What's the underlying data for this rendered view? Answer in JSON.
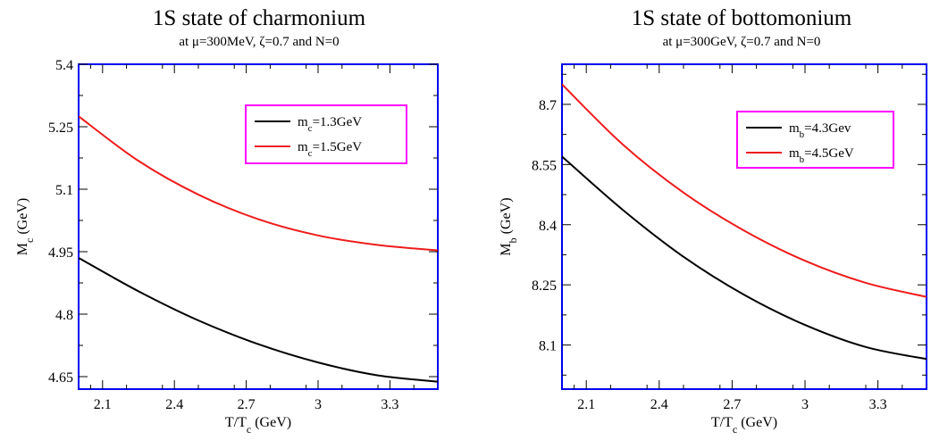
{
  "chart_data": [
    {
      "type": "line",
      "title": "1S state of charmonium",
      "subtitle": "at μ=300MeV, ζ=0.7 and N=0",
      "xlabel": {
        "base": "T/T",
        "sub": "c",
        "suffix": "  (GeV)"
      },
      "ylabel": {
        "base": "M",
        "sub": "c",
        "suffix": " (GeV)"
      },
      "xlim": [
        2.0,
        3.5
      ],
      "ylim": [
        4.62,
        5.4
      ],
      "xticks": [
        2.1,
        2.4,
        2.7,
        3.0,
        3.3
      ],
      "xtick_labels": [
        "2.1",
        "2.4",
        "2.7",
        "3",
        "3.3"
      ],
      "yticks": [
        4.65,
        4.8,
        4.95,
        5.1,
        5.25,
        5.4
      ],
      "ytick_labels": [
        "4.65",
        "4.8",
        "4.95",
        "5.1",
        "5.25",
        "5.4"
      ],
      "legend_position": "top-right",
      "x": [
        2.0,
        2.25,
        2.5,
        2.75,
        3.0,
        3.25,
        3.5
      ],
      "series": [
        {
          "name": "m_c=1.3GeV",
          "label_base": "m",
          "label_sub": "c",
          "label_rest": "=1.3GeV",
          "color": "#000000",
          "values": [
            4.935,
            4.855,
            4.785,
            4.728,
            4.684,
            4.653,
            4.638
          ]
        },
        {
          "name": "m_c=1.5GeV",
          "label_base": "m",
          "label_sub": "c",
          "label_rest": "=1.5GeV",
          "color": "#ee1c1c",
          "values": [
            5.275,
            5.168,
            5.087,
            5.028,
            4.989,
            4.966,
            4.953
          ]
        }
      ]
    },
    {
      "type": "line",
      "title": "1S state of bottomonium",
      "subtitle": "at μ=300GeV, ζ=0.7 and N=0",
      "xlabel": {
        "base": "T/T",
        "sub": "c",
        "suffix": "  (GeV)"
      },
      "ylabel": {
        "base": "M",
        "sub": "b",
        "suffix": " (GeV)"
      },
      "xlim": [
        2.0,
        3.5
      ],
      "ylim": [
        7.99,
        8.8
      ],
      "xticks": [
        2.1,
        2.4,
        2.7,
        3.0,
        3.3
      ],
      "xtick_labels": [
        "2.1",
        "2.4",
        "2.7",
        "3",
        "3.3"
      ],
      "yticks": [
        8.1,
        8.25,
        8.4,
        8.55,
        8.7
      ],
      "ytick_labels": [
        "8.1",
        "8.25",
        "8.4",
        "8.55",
        "8.7"
      ],
      "legend_position": "top-right",
      "x": [
        2.0,
        2.25,
        2.5,
        2.75,
        3.0,
        3.25,
        3.5
      ],
      "series": [
        {
          "name": "m_b=4.3Gev",
          "label_base": "m",
          "label_sub": "b",
          "label_rest": "=4.3Gev",
          "color": "#000000",
          "values": [
            8.57,
            8.437,
            8.32,
            8.225,
            8.15,
            8.095,
            8.065
          ]
        },
        {
          "name": "m_b=4.5GeV",
          "label_base": "m",
          "label_sub": "b",
          "label_rest": "=4.5GeV",
          "color": "#ee1c1c",
          "values": [
            8.75,
            8.6,
            8.48,
            8.385,
            8.31,
            8.255,
            8.22
          ]
        }
      ]
    }
  ],
  "colors": {
    "frame": "#0000ee",
    "legend_border": "#ff00ff"
  }
}
